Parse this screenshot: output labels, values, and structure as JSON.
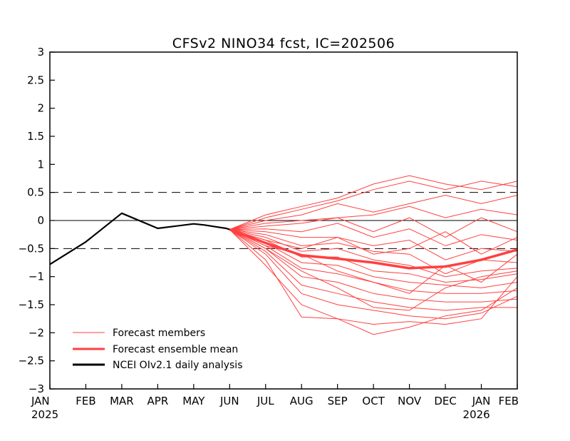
{
  "chart_data": {
    "type": "line",
    "title": "CFSv2 NINO34 fcst, IC=202506",
    "xlabel": "",
    "ylabel": "",
    "ylim": [
      -3,
      3
    ],
    "yticks": [
      3,
      2.5,
      2,
      1.5,
      1,
      0.5,
      0,
      -0.5,
      -1,
      -1.5,
      -2,
      -2.5,
      -3
    ],
    "ytick_labels": [
      "3",
      "2.5",
      "2",
      "1.5",
      "1",
      "0.5",
      "0",
      "−0.5",
      "−1",
      "−1.5",
      "−2",
      "−2.5",
      "−3"
    ],
    "x_categories": [
      "JAN",
      "FEB",
      "MAR",
      "APR",
      "MAY",
      "JUN",
      "JUL",
      "AUG",
      "SEP",
      "OCT",
      "NOV",
      "DEC",
      "JAN",
      "FEB"
    ],
    "x_year_labels": [
      {
        "index": 0,
        "label": "2025"
      },
      {
        "index": 12,
        "label": "2026"
      }
    ],
    "reference_lines": [
      {
        "y": 0.5,
        "style": "dashed"
      },
      {
        "y": 0,
        "style": "solid"
      },
      {
        "y": -0.5,
        "style": "dashed"
      }
    ],
    "legend": {
      "placement": "bottom-left",
      "entries": [
        {
          "label": "Forecast members",
          "color": "#ff4040",
          "weight": "thin"
        },
        {
          "label": "Forecast ensemble mean",
          "color": "#ff4040",
          "weight": "thick"
        },
        {
          "label": "NCEI OIv2.1 daily analysis",
          "color": "#000000",
          "weight": "thick"
        }
      ]
    },
    "observed": {
      "name": "NCEI OIv2.1 daily analysis",
      "color": "#000000",
      "x": [
        0,
        1,
        2,
        3,
        4,
        4.3,
        4.6,
        4.9,
        5.0
      ],
      "y": [
        -0.78,
        -0.38,
        0.13,
        -0.14,
        -0.06,
        -0.08,
        -0.11,
        -0.14,
        -0.16
      ]
    },
    "ensemble_mean": {
      "name": "Forecast ensemble mean",
      "color": "#ff4040",
      "x": [
        5,
        6,
        7,
        8,
        9,
        10,
        11,
        12,
        13
      ],
      "y": [
        -0.16,
        -0.4,
        -0.62,
        -0.68,
        -0.75,
        -0.85,
        -0.82,
        -0.7,
        -0.52
      ]
    },
    "members": {
      "name": "Forecast members",
      "color": "#ff4040",
      "x": [
        5,
        6,
        7,
        8,
        9,
        10,
        11,
        12,
        13
      ],
      "series": [
        [
          -0.16,
          0.1,
          0.25,
          0.4,
          0.65,
          0.8,
          0.65,
          0.55,
          0.7
        ],
        [
          -0.16,
          0.05,
          0.2,
          0.35,
          0.55,
          0.7,
          0.55,
          0.7,
          0.6
        ],
        [
          -0.16,
          0.0,
          0.1,
          0.3,
          0.15,
          0.3,
          0.45,
          0.3,
          0.45
        ],
        [
          -0.16,
          -0.05,
          0.0,
          0.05,
          0.1,
          0.25,
          0.05,
          0.2,
          0.1
        ],
        [
          -0.16,
          -0.1,
          -0.05,
          0.05,
          -0.2,
          0.05,
          -0.3,
          0.05,
          -0.2
        ],
        [
          -0.16,
          -0.15,
          -0.2,
          -0.05,
          -0.3,
          -0.15,
          -0.45,
          -0.25,
          -0.35
        ],
        [
          -0.16,
          -0.2,
          -0.3,
          -0.3,
          -0.45,
          -0.35,
          -0.7,
          -0.5,
          -0.55
        ],
        [
          -0.16,
          -0.25,
          -0.45,
          -0.4,
          -0.55,
          -0.6,
          -0.95,
          -0.7,
          -0.75
        ],
        [
          -0.16,
          -0.3,
          -0.55,
          -0.5,
          -0.7,
          -0.8,
          -1.0,
          -0.9,
          -0.85
        ],
        [
          -0.16,
          -0.35,
          -0.65,
          -0.65,
          -0.9,
          -0.95,
          -1.1,
          -1.05,
          -0.95
        ],
        [
          -0.16,
          -0.4,
          -0.75,
          -0.8,
          -1.0,
          -1.1,
          -1.15,
          -1.2,
          -1.1
        ],
        [
          -0.16,
          -0.45,
          -0.85,
          -0.95,
          -1.1,
          -1.25,
          -1.3,
          -1.3,
          -1.25
        ],
        [
          -0.16,
          -0.5,
          -1.0,
          -1.1,
          -1.3,
          -1.4,
          -1.45,
          -1.45,
          -1.4
        ],
        [
          -0.16,
          -0.55,
          -1.15,
          -1.3,
          -1.45,
          -1.55,
          -1.6,
          -1.55,
          -1.55
        ],
        [
          -0.16,
          -0.6,
          -1.3,
          -1.5,
          -1.6,
          -1.7,
          -1.75,
          -1.65,
          -1.35
        ],
        [
          -0.16,
          -0.7,
          -1.72,
          -1.75,
          -2.03,
          -1.9,
          -1.7,
          -1.6,
          -1.2
        ],
        [
          -0.16,
          -0.8,
          -1.5,
          -1.75,
          -1.85,
          -1.8,
          -1.85,
          -1.75,
          -1.0
        ],
        [
          -0.16,
          -0.5,
          -0.9,
          -1.2,
          -1.55,
          -1.6,
          -1.2,
          -1.0,
          -0.9
        ],
        [
          -0.16,
          -0.45,
          -0.6,
          -0.9,
          -1.1,
          -1.3,
          -0.8,
          -1.1,
          -0.6
        ],
        [
          -0.16,
          -0.35,
          -0.5,
          -0.3,
          -0.6,
          -0.5,
          -0.2,
          -0.6,
          -0.3
        ]
      ]
    }
  }
}
